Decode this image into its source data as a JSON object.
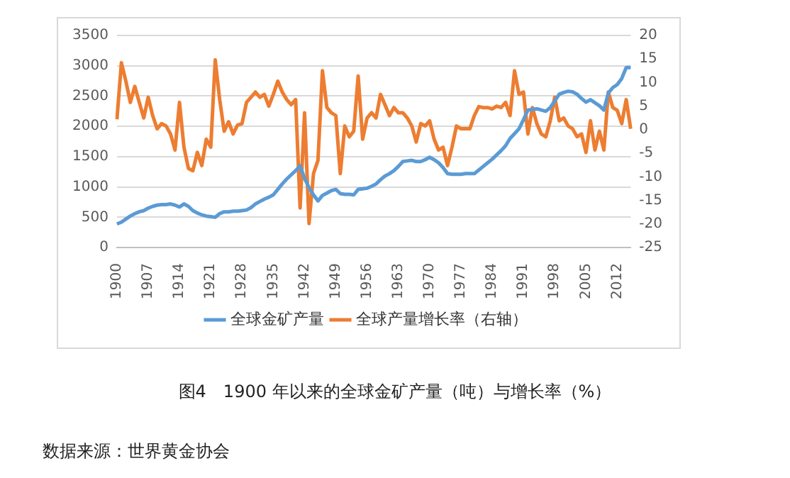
{
  "chart_data": {
    "type": "line",
    "title": "图4　1900 年以来的全球金矿产量（吨）与增长率（%）",
    "annotations": [
      "数据来源：世界黄金协会"
    ],
    "categories": [
      "1900",
      null,
      null,
      null,
      null,
      null,
      null,
      "1907",
      null,
      null,
      null,
      null,
      null,
      null,
      "1914",
      null,
      null,
      null,
      null,
      null,
      null,
      "1921",
      null,
      null,
      null,
      null,
      null,
      null,
      "1928",
      null,
      null,
      null,
      null,
      null,
      null,
      "1935",
      null,
      null,
      null,
      null,
      null,
      null,
      "1942",
      null,
      null,
      null,
      null,
      null,
      null,
      "1949",
      null,
      null,
      null,
      null,
      null,
      null,
      "1956",
      null,
      null,
      null,
      null,
      null,
      null,
      "1963",
      null,
      null,
      null,
      null,
      null,
      null,
      "1970",
      null,
      null,
      null,
      null,
      null,
      null,
      "1977",
      null,
      null,
      null,
      null,
      null,
      null,
      "1984",
      null,
      null,
      null,
      null,
      null,
      null,
      "1991",
      null,
      null,
      null,
      null,
      null,
      null,
      "1998",
      null,
      null,
      null,
      null,
      null,
      null,
      "2005",
      null,
      null,
      null,
      null,
      null,
      null,
      "2012",
      null,
      null,
      null
    ],
    "series": [
      {
        "name": "全球金矿产量",
        "color": "#5b9bd5",
        "values": [
          390,
          420,
          470,
          520,
          560,
          590,
          610,
          650,
          680,
          700,
          710,
          710,
          720,
          700,
          670,
          720,
          680,
          610,
          570,
          540,
          520,
          510,
          500,
          560,
          590,
          590,
          600,
          600,
          610,
          620,
          660,
          720,
          760,
          800,
          830,
          870,
          960,
          1050,
          1130,
          1200,
          1270,
          1350,
          1140,
          990,
          870,
          770,
          860,
          900,
          940,
          960,
          890,
          880,
          880,
          870,
          960,
          970,
          980,
          1010,
          1050,
          1120,
          1180,
          1220,
          1270,
          1340,
          1420,
          1430,
          1440,
          1420,
          1420,
          1450,
          1490,
          1450,
          1400,
          1320,
          1220,
          1210,
          1210,
          1210,
          1220,
          1220,
          1220,
          1280,
          1340,
          1400,
          1460,
          1530,
          1600,
          1680,
          1800,
          1880,
          1960,
          2110,
          2270,
          2280,
          2290,
          2270,
          2250,
          2310,
          2420,
          2530,
          2560,
          2580,
          2570,
          2530,
          2460,
          2400,
          2440,
          2390,
          2340,
          2270,
          2550,
          2640,
          2690,
          2790,
          2970,
          2970
        ]
      },
      {
        "name": "全球产量增长率（右轴）",
        "color": "#ed7d31",
        "axis": "y2",
        "values": [
          2.2,
          14.2,
          10.3,
          5.8,
          9.2,
          5.8,
          2.5,
          6.9,
          3,
          0.2,
          1.3,
          0.8,
          -0.9,
          -4.3,
          5.8,
          -3.7,
          -8.2,
          -8.7,
          -4.8,
          -7.6,
          -2,
          -3.7,
          14.8,
          6.4,
          -0.3,
          1.7,
          -0.9,
          1,
          1.3,
          5.8,
          6.9,
          8,
          6.9,
          7.5,
          5,
          7.5,
          10.3,
          8,
          6.4,
          5.3,
          6.4,
          -16.6,
          3.6,
          -19.9,
          -9.3,
          -6.5,
          12.5,
          4.7,
          3.6,
          3,
          -9.3,
          0.8,
          -1.5,
          -0.3,
          11.4,
          -2,
          2.5,
          3.6,
          2.5,
          7.5,
          5.3,
          3,
          4.7,
          3.6,
          3.6,
          2.5,
          0.8,
          -2.6,
          1.3,
          0.8,
          1.9,
          -2,
          -4.3,
          -3.7,
          -7.6,
          -3.7,
          0.8,
          0.2,
          0.2,
          0.2,
          3,
          4.9,
          4.7,
          4.7,
          4.4,
          5,
          4.7,
          5.8,
          3,
          12.5,
          7.5,
          8,
          -0.9,
          4.7,
          1.3,
          -0.9,
          -1.5,
          1.9,
          6.9,
          1.9,
          2.5,
          0.8,
          0.2,
          -1.5,
          -0.9,
          -4.8,
          1.9,
          -4.3,
          -0.3,
          -4.3,
          8,
          4.7,
          4.1,
          1.3,
          6.4,
          0.2
        ]
      }
    ],
    "ylim": [
      0,
      3500
    ],
    "yticks": [
      0,
      500,
      1000,
      1500,
      2000,
      2500,
      3000,
      3500
    ],
    "y2lim": [
      -25,
      20
    ],
    "y2ticks": [
      -25,
      -20,
      -15,
      -10,
      -5,
      0,
      5,
      10,
      15,
      20
    ],
    "grid": "y",
    "legend": "bottom",
    "marker": "none",
    "line_style": "solid"
  }
}
